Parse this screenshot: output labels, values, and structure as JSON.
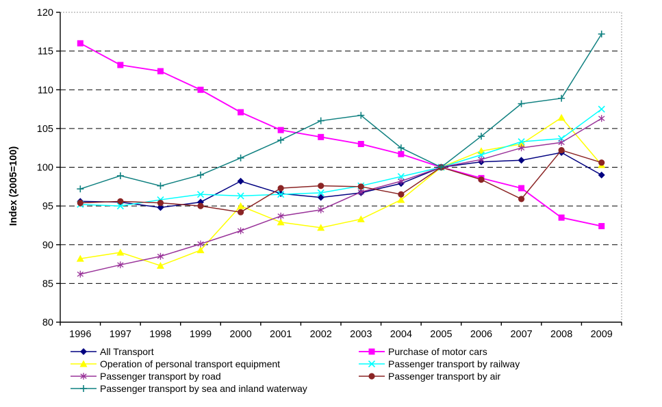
{
  "chart_data": {
    "type": "line",
    "title": "",
    "xlabel": "",
    "ylabel": "Index (2005=100)",
    "ylim": [
      80,
      120
    ],
    "ytick_step": 5,
    "yticks": [
      80,
      85,
      90,
      95,
      100,
      105,
      110,
      115,
      120
    ],
    "grid": "horizontal-dashed",
    "legend_position": "bottom-two-columns",
    "categories": [
      "1996",
      "1997",
      "1998",
      "1999",
      "2000",
      "2001",
      "2002",
      "2003",
      "2004",
      "2005",
      "2006",
      "2007",
      "2008",
      "2009"
    ],
    "series": [
      {
        "name": "All Transport",
        "marker": "diamond",
        "color": "#000080",
        "values": [
          95.6,
          95.5,
          94.8,
          95.5,
          98.2,
          96.6,
          96.1,
          96.7,
          97.9,
          100,
          100.7,
          100.9,
          101.9,
          99.0
        ]
      },
      {
        "name": "Purchase of motor cars",
        "marker": "square",
        "color": "#FF00FF",
        "values": [
          116.0,
          113.2,
          112.4,
          110.0,
          107.1,
          104.8,
          103.9,
          103.0,
          101.7,
          100,
          98.6,
          97.3,
          93.5,
          92.4
        ]
      },
      {
        "name": "Operation of personal transport equipment",
        "marker": "triangle",
        "color": "#FFFF00",
        "values": [
          88.2,
          89.0,
          87.3,
          89.3,
          95.0,
          92.9,
          92.2,
          93.3,
          95.8,
          100,
          102.1,
          103.0,
          106.4,
          100.3
        ]
      },
      {
        "name": "Passenger transport by railway",
        "marker": "x",
        "color": "#00FFFF",
        "values": [
          95.2,
          95.0,
          95.8,
          96.5,
          96.3,
          96.5,
          96.7,
          97.6,
          98.8,
          100,
          101.6,
          103.3,
          103.7,
          107.5
        ]
      },
      {
        "name": "Passenger transport by road",
        "marker": "asterisk",
        "color": "#993399",
        "values": [
          86.2,
          87.4,
          88.5,
          90.1,
          91.8,
          93.7,
          94.5,
          96.8,
          98.2,
          100,
          101.0,
          102.5,
          103.2,
          106.3
        ]
      },
      {
        "name": "Passenger transport by air",
        "marker": "circle",
        "color": "#8B2525",
        "values": [
          95.4,
          95.6,
          95.4,
          95.0,
          94.2,
          97.3,
          97.6,
          97.5,
          96.5,
          100,
          98.4,
          95.9,
          102.2,
          100.6
        ]
      },
      {
        "name": "Passenger transport by sea and inland waterway",
        "marker": "plus",
        "color": "#0F8080",
        "values": [
          97.2,
          98.9,
          97.6,
          99.0,
          101.2,
          103.5,
          106.0,
          106.7,
          102.5,
          100,
          104.0,
          108.2,
          108.9,
          117.2
        ]
      }
    ],
    "legend_columns": [
      [
        0,
        2,
        4,
        6
      ],
      [
        1,
        3,
        5
      ]
    ],
    "colors": {
      "gridline": "#000000",
      "axis": "#000000",
      "plot_border": "#999999",
      "background": "#FFFFFF"
    }
  }
}
